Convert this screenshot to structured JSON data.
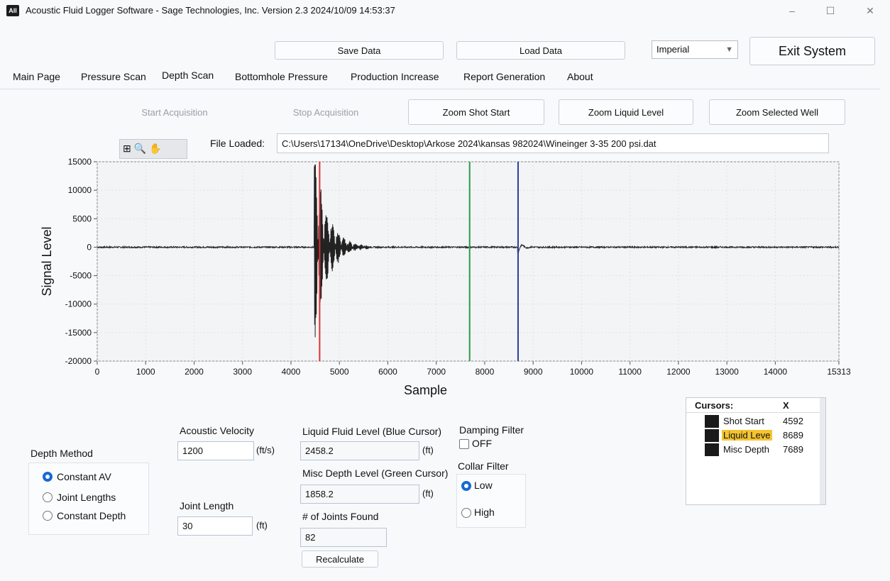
{
  "window": {
    "icon_text": "All",
    "title": "Acoustic Fluid Logger Software - Sage Technologies, Inc.  Version 2.3 2024/10/09 14:53:37",
    "minimize": "–",
    "maximize": "☐",
    "close": "✕"
  },
  "toolbar": {
    "save_label": "Save Data",
    "load_label": "Load Data",
    "units_value": "Imperial",
    "exit_label": "Exit System"
  },
  "tabs": [
    {
      "label": "Main Page"
    },
    {
      "label": "Pressure Scan"
    },
    {
      "label": "Depth Scan"
    },
    {
      "label": "Bottomhole Pressure"
    },
    {
      "label": "Production Increase"
    },
    {
      "label": "Report Generation"
    },
    {
      "label": "About"
    }
  ],
  "actions": {
    "start_label": "Start Acquisition",
    "stop_label": "Stop Acquisition",
    "zoom_shot_label": "Zoom Shot Start",
    "zoom_liquid_label": "Zoom Liquid Level",
    "zoom_well_label": "Zoom Selected Well"
  },
  "file": {
    "label": "File Loaded:",
    "path": "C:\\Users\\17134\\OneDrive\\Desktop\\Arkose 2024\\kansas 982024\\Wineinger 3-35 200 psi.dat"
  },
  "graph_tools": {
    "icons": [
      "crosshair-icon",
      "zoom-icon",
      "pan-icon"
    ],
    "text": "⊞ 🔍 ✋"
  },
  "chart_data": {
    "type": "line",
    "xlabel": "Sample",
    "ylabel": "Signal Level",
    "xlim": [
      0,
      15313
    ],
    "ylim": [
      -20000,
      15000
    ],
    "x_ticks": [
      "0",
      "1000",
      "2000",
      "3000",
      "4000",
      "5000",
      "6000",
      "7000",
      "8000",
      "9000",
      "10000",
      "11000",
      "12000",
      "13000",
      "14000",
      "15313"
    ],
    "y_ticks": [
      "15000",
      "10000",
      "5000",
      "0",
      "-5000",
      "-10000",
      "-15000",
      "-20000"
    ],
    "grid": true,
    "series_color": "#222222",
    "cursors": [
      {
        "x": 4592,
        "color": "#e03030"
      },
      {
        "x": 7689,
        "color": "#2a9a4a"
      },
      {
        "x": 8689,
        "color": "#2a3f9a"
      }
    ]
  },
  "params": {
    "depth_method_label": "Depth Method",
    "depth_methods": [
      {
        "label": "Constant AV",
        "selected": true
      },
      {
        "label": "Joint Lengths",
        "selected": false
      },
      {
        "label": "Constant Depth",
        "selected": false
      }
    ],
    "acoustic_velocity_label": "Acoustic Velocity",
    "acoustic_velocity_value": "1200",
    "acoustic_velocity_unit": "(ft/s)",
    "joint_length_label": "Joint Length",
    "joint_length_value": "30",
    "joint_length_unit": "(ft)",
    "liquid_level_label": "Liquid Fluid Level (Blue Cursor)",
    "liquid_level_value": "2458.2",
    "liquid_level_unit": "(ft)",
    "misc_depth_label": "Misc Depth Level (Green Cursor)",
    "misc_depth_value": "1858.2",
    "misc_depth_unit": "(ft)",
    "joints_found_label": "# of Joints Found",
    "joints_found_value": "82",
    "recalculate_label": "Recalculate",
    "damping_filter_label": "Damping Filter",
    "damping_filter_state": "OFF",
    "collar_filter_label": "Collar Filter",
    "collar_options": [
      {
        "label": "Low",
        "selected": true
      },
      {
        "label": "High",
        "selected": false
      }
    ]
  },
  "cursors_table": {
    "header_name": "Cursors:",
    "header_x": "X",
    "rows": [
      {
        "name": "Shot Start",
        "x": "4592"
      },
      {
        "name": "Liquid Leve",
        "x": "8689"
      },
      {
        "name": "Misc Depth",
        "x": "7689"
      }
    ],
    "highlight_color": "#f4c430"
  }
}
